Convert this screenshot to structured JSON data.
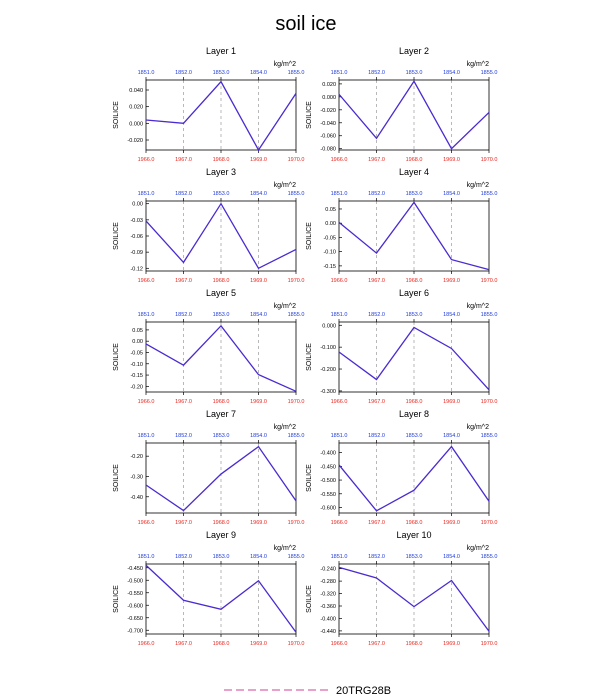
{
  "title": "soil ice",
  "colors": {
    "line": "#4b2ad1",
    "bottom_ticks": "#e8251e",
    "top_ticks": "#1f3ad8",
    "grid": "#9a9a9a",
    "legend_line": "#d0409a"
  },
  "legend": {
    "label": "20TRG28B"
  },
  "chart_data": [
    {
      "type": "line",
      "title": "Layer 1",
      "units": "kg/m^2",
      "ylabel": "SOILICE",
      "x": [
        1966,
        1967,
        1968,
        1969,
        1970
      ],
      "x_tick_labels": [
        "1966.0",
        "1967.0",
        "1968.0",
        "1969.0",
        "1970.0"
      ],
      "top_tick_labels": [
        "1851.0",
        "1852.0",
        "1853.0",
        "1854.0",
        "1855.0"
      ],
      "ylim": [
        -0.032,
        0.052
      ],
      "yticks": [
        -0.02,
        0.0,
        0.02,
        0.04
      ],
      "ytick_labels": [
        "-0.020",
        "0.000",
        "0.020",
        "0.040"
      ],
      "series": [
        {
          "values": [
            0.004,
            0.0,
            0.05,
            -0.032,
            0.036
          ]
        }
      ]
    },
    {
      "type": "line",
      "title": "Layer 2",
      "units": "kg/m^2",
      "ylabel": "SOILICE",
      "x": [
        1966,
        1967,
        1968,
        1969,
        1970
      ],
      "x_tick_labels": [
        "1966.0",
        "1967.0",
        "1968.0",
        "1969.0",
        "1970.0"
      ],
      "top_tick_labels": [
        "1851.0",
        "1852.0",
        "1853.0",
        "1854.0",
        "1855.0"
      ],
      "ylim": [
        -0.082,
        0.026
      ],
      "yticks": [
        -0.08,
        -0.06,
        -0.04,
        -0.02,
        0.0,
        0.02
      ],
      "ytick_labels": [
        "-0.080",
        "-0.060",
        "-0.040",
        "-0.020",
        "0.000",
        "0.020"
      ],
      "series": [
        {
          "values": [
            0.004,
            -0.064,
            0.024,
            -0.08,
            -0.024
          ]
        }
      ]
    },
    {
      "type": "line",
      "title": "Layer 3",
      "units": "kg/m^2",
      "ylabel": "SOILICE",
      "x": [
        1966,
        1967,
        1968,
        1969,
        1970
      ],
      "x_tick_labels": [
        "1966.0",
        "1967.0",
        "1968.0",
        "1969.0",
        "1970.0"
      ],
      "top_tick_labels": [
        "1851.0",
        "1852.0",
        "1853.0",
        "1854.0",
        "1855.0"
      ],
      "ylim": [
        -0.125,
        0.005
      ],
      "yticks": [
        -0.12,
        -0.09,
        -0.06,
        -0.03,
        0.0
      ],
      "ytick_labels": [
        "-0.12",
        "-0.09",
        "-0.06",
        "-0.03",
        "0.00"
      ],
      "series": [
        {
          "values": [
            -0.032,
            -0.109,
            0.0,
            -0.12,
            -0.085
          ]
        }
      ]
    },
    {
      "type": "line",
      "title": "Layer 4",
      "units": "kg/m^2",
      "ylabel": "SOILICE",
      "x": [
        1966,
        1967,
        1968,
        1969,
        1970
      ],
      "x_tick_labels": [
        "1966.0",
        "1967.0",
        "1968.0",
        "1969.0",
        "1970.0"
      ],
      "top_tick_labels": [
        "1851.0",
        "1852.0",
        "1853.0",
        "1854.0",
        "1855.0"
      ],
      "ylim": [
        -0.168,
        0.078
      ],
      "yticks": [
        -0.15,
        -0.1,
        -0.05,
        0.0,
        0.05
      ],
      "ytick_labels": [
        "-0.15",
        "-0.10",
        "-0.05",
        "0.00",
        "0.05"
      ],
      "series": [
        {
          "values": [
            0.003,
            -0.105,
            0.073,
            -0.128,
            -0.163
          ]
        }
      ]
    },
    {
      "type": "line",
      "title": "Layer 5",
      "units": "kg/m^2",
      "ylabel": "SOILICE",
      "x": [
        1966,
        1967,
        1968,
        1969,
        1970
      ],
      "x_tick_labels": [
        "1966.0",
        "1967.0",
        "1968.0",
        "1969.0",
        "1970.0"
      ],
      "top_tick_labels": [
        "1851.0",
        "1852.0",
        "1853.0",
        "1854.0",
        "1855.0"
      ],
      "ylim": [
        -0.225,
        0.085
      ],
      "yticks": [
        -0.2,
        -0.15,
        -0.1,
        -0.05,
        0.0,
        0.05
      ],
      "ytick_labels": [
        "-0.20",
        "-0.15",
        "-0.10",
        "-0.05",
        "0.00",
        "0.05"
      ],
      "series": [
        {
          "values": [
            -0.012,
            -0.106,
            0.068,
            -0.148,
            -0.222
          ]
        }
      ]
    },
    {
      "type": "line",
      "title": "Layer 6",
      "units": "kg/m^2",
      "ylabel": "SOILICE",
      "x": [
        1966,
        1967,
        1968,
        1969,
        1970
      ],
      "x_tick_labels": [
        "1966.0",
        "1967.0",
        "1968.0",
        "1969.0",
        "1970.0"
      ],
      "top_tick_labels": [
        "1851.0",
        "1852.0",
        "1853.0",
        "1854.0",
        "1855.0"
      ],
      "ylim": [
        -0.305,
        0.015
      ],
      "yticks": [
        -0.3,
        -0.2,
        -0.1,
        0.0
      ],
      "ytick_labels": [
        "-0.300",
        "-0.200",
        "-0.100",
        "0.000"
      ],
      "series": [
        {
          "values": [
            -0.122,
            -0.248,
            -0.01,
            -0.106,
            -0.295
          ]
        }
      ]
    },
    {
      "type": "line",
      "title": "Layer 7",
      "units": "kg/m^2",
      "ylabel": "SOILICE",
      "x": [
        1966,
        1967,
        1968,
        1969,
        1970
      ],
      "x_tick_labels": [
        "1966.0",
        "1967.0",
        "1968.0",
        "1969.0",
        "1970.0"
      ],
      "top_tick_labels": [
        "1851.0",
        "1852.0",
        "1853.0",
        "1854.0",
        "1855.0"
      ],
      "ylim": [
        -0.48,
        -0.135
      ],
      "yticks": [
        -0.4,
        -0.3,
        -0.2
      ],
      "ytick_labels": [
        "-0.40",
        "-0.30",
        "-0.20"
      ],
      "series": [
        {
          "values": [
            -0.342,
            -0.468,
            -0.288,
            -0.153,
            -0.42
          ]
        }
      ]
    },
    {
      "type": "line",
      "title": "Layer 8",
      "units": "kg/m^2",
      "ylabel": "SOILICE",
      "x": [
        1966,
        1967,
        1968,
        1969,
        1970
      ],
      "x_tick_labels": [
        "1966.0",
        "1967.0",
        "1968.0",
        "1969.0",
        "1970.0"
      ],
      "top_tick_labels": [
        "1851.0",
        "1852.0",
        "1853.0",
        "1854.0",
        "1855.0"
      ],
      "ylim": [
        -0.62,
        -0.365
      ],
      "yticks": [
        -0.6,
        -0.55,
        -0.5,
        -0.45,
        -0.4
      ],
      "ytick_labels": [
        "-0.600",
        "-0.550",
        "-0.500",
        "-0.450",
        "-0.400"
      ],
      "series": [
        {
          "values": [
            -0.445,
            -0.612,
            -0.537,
            -0.378,
            -0.577
          ]
        }
      ]
    },
    {
      "type": "line",
      "title": "Layer 9",
      "units": "kg/m^2",
      "ylabel": "SOILICE",
      "x": [
        1966,
        1967,
        1968,
        1969,
        1970
      ],
      "x_tick_labels": [
        "1966.0",
        "1967.0",
        "1968.0",
        "1969.0",
        "1970.0"
      ],
      "top_tick_labels": [
        "1851.0",
        "1852.0",
        "1853.0",
        "1854.0",
        "1855.0"
      ],
      "ylim": [
        -0.715,
        -0.435
      ],
      "yticks": [
        -0.7,
        -0.65,
        -0.6,
        -0.55,
        -0.5,
        -0.45
      ],
      "ytick_labels": [
        "-0.700",
        "-0.650",
        "-0.600",
        "-0.550",
        "-0.500",
        "-0.450"
      ],
      "series": [
        {
          "values": [
            -0.44,
            -0.58,
            -0.616,
            -0.502,
            -0.708
          ]
        }
      ]
    },
    {
      "type": "line",
      "title": "Layer 10",
      "units": "kg/m^2",
      "ylabel": "SOILICE",
      "x": [
        1966,
        1967,
        1968,
        1969,
        1970
      ],
      "x_tick_labels": [
        "1966.0",
        "1967.0",
        "1968.0",
        "1969.0",
        "1970.0"
      ],
      "top_tick_labels": [
        "1851.0",
        "1852.0",
        "1853.0",
        "1854.0",
        "1855.0"
      ],
      "ylim": [
        -0.45,
        -0.225
      ],
      "yticks": [
        -0.44,
        -0.4,
        -0.36,
        -0.32,
        -0.28,
        -0.24
      ],
      "ytick_labels": [
        "-0.440",
        "-0.400",
        "-0.360",
        "-0.320",
        "-0.280",
        "-0.240"
      ],
      "series": [
        {
          "values": [
            -0.236,
            -0.27,
            -0.362,
            -0.278,
            -0.441
          ]
        }
      ]
    }
  ]
}
